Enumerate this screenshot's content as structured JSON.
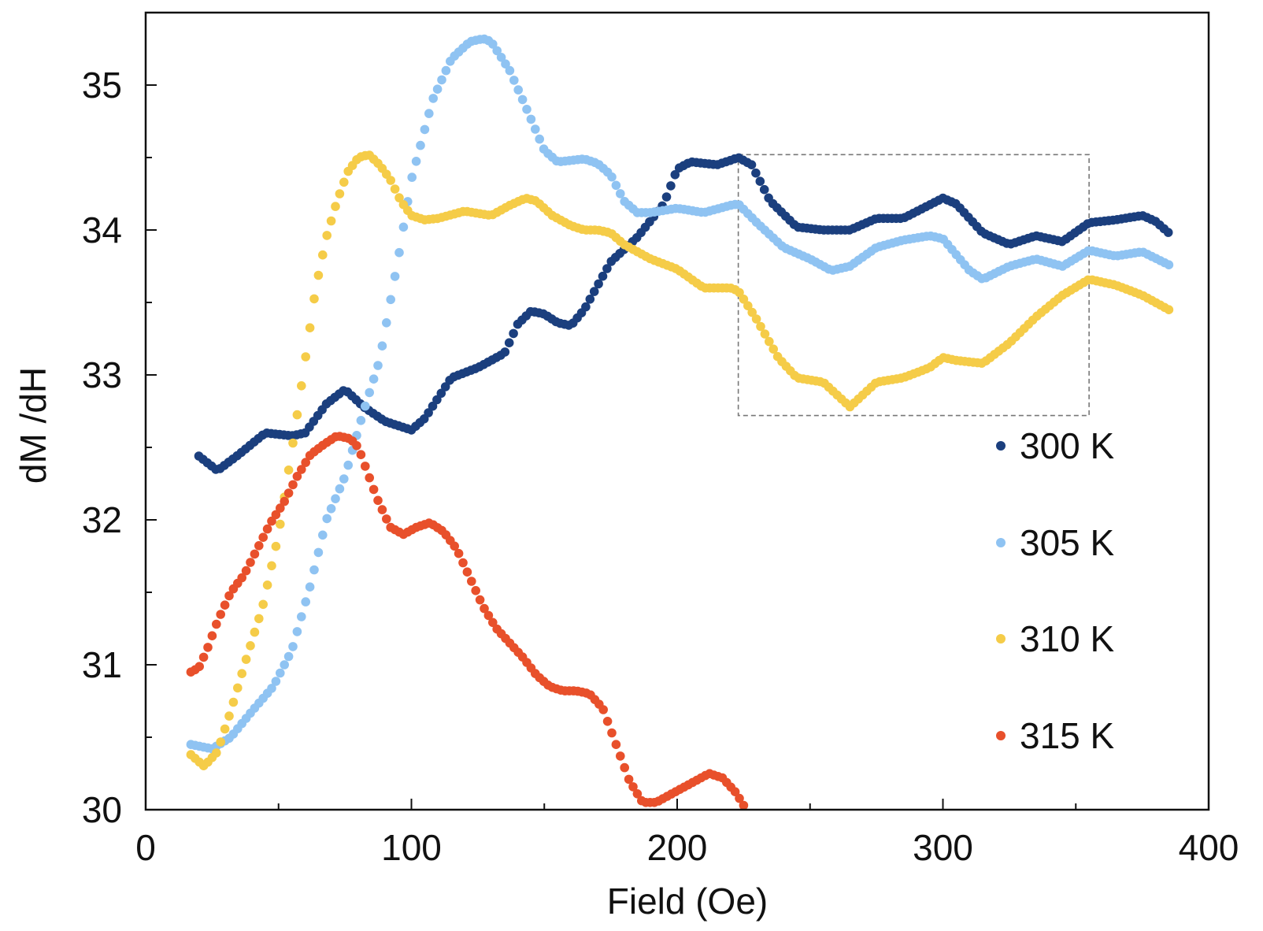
{
  "chart_data": {
    "type": "scatter",
    "xlabel": "Field (Oe)",
    "ylabel": "dM /dH",
    "xlim": [
      0,
      400
    ],
    "ylim": [
      30,
      35.5
    ],
    "xticks": [
      "0",
      "100",
      "200",
      "300",
      "400"
    ],
    "yticks": [
      "30",
      "31",
      "32",
      "33",
      "34",
      "35"
    ],
    "grid": false,
    "legend_position": "lower-right",
    "inset_box": {
      "x_range": [
        223,
        355
      ],
      "y_range": [
        32.72,
        34.52
      ],
      "style": "dashed"
    },
    "series": [
      {
        "name": "300 K",
        "color": "#1b3f7e",
        "x": [
          20,
          27,
          35,
          45,
          55,
          60,
          68,
          75,
          82,
          90,
          100,
          105,
          115,
          125,
          135,
          140,
          145,
          150,
          155,
          160,
          165,
          175,
          185,
          195,
          200,
          205,
          210,
          215,
          220,
          223,
          228,
          235,
          245,
          255,
          265,
          275,
          285,
          300,
          305,
          315,
          325,
          335,
          345,
          355,
          365,
          375,
          380,
          385
        ],
        "y": [
          32.44,
          32.34,
          32.45,
          32.6,
          32.58,
          32.6,
          32.8,
          32.9,
          32.78,
          32.68,
          32.62,
          32.7,
          32.98,
          33.05,
          33.15,
          33.35,
          33.44,
          33.42,
          33.36,
          33.34,
          33.45,
          33.78,
          33.95,
          34.18,
          34.42,
          34.47,
          34.46,
          34.45,
          34.48,
          34.5,
          34.45,
          34.2,
          34.02,
          34.0,
          34.0,
          34.08,
          34.08,
          34.22,
          34.18,
          33.98,
          33.9,
          33.96,
          33.92,
          34.05,
          34.07,
          34.1,
          34.06,
          33.98
        ]
      },
      {
        "name": "305 K",
        "color": "#8fc3f2",
        "x": [
          17,
          25,
          32,
          40,
          48,
          55,
          62,
          68,
          75,
          82,
          88,
          95,
          100,
          108,
          115,
          122,
          127,
          130,
          137,
          143,
          150,
          155,
          160,
          165,
          170,
          175,
          180,
          185,
          190,
          200,
          210,
          220,
          223,
          230,
          240,
          250,
          258,
          265,
          275,
          285,
          295,
          300,
          310,
          315,
          325,
          335,
          345,
          355,
          365,
          375,
          385
        ],
        "y": [
          30.45,
          30.42,
          30.5,
          30.68,
          30.85,
          31.1,
          31.55,
          32.0,
          32.3,
          32.75,
          33.1,
          33.8,
          34.35,
          34.9,
          35.18,
          35.3,
          35.32,
          35.3,
          35.1,
          34.85,
          34.55,
          34.47,
          34.48,
          34.49,
          34.46,
          34.38,
          34.2,
          34.12,
          34.12,
          34.15,
          34.12,
          34.17,
          34.18,
          34.05,
          33.88,
          33.8,
          33.72,
          33.75,
          33.88,
          33.93,
          33.96,
          33.94,
          33.72,
          33.66,
          33.75,
          33.8,
          33.75,
          33.86,
          33.82,
          33.85,
          33.76
        ]
      },
      {
        "name": "310 K",
        "color": "#f5cc48",
        "x": [
          17,
          22,
          27,
          32,
          38,
          44,
          50,
          56,
          60,
          64,
          68,
          72,
          76,
          80,
          84,
          88,
          92,
          96,
          100,
          105,
          110,
          120,
          130,
          137,
          143,
          147,
          153,
          160,
          165,
          170,
          175,
          180,
          190,
          200,
          210,
          220,
          223,
          230,
          238,
          245,
          255,
          265,
          275,
          285,
          295,
          300,
          305,
          315,
          325,
          335,
          345,
          355,
          365,
          375,
          385
        ],
        "y": [
          30.38,
          30.3,
          30.4,
          30.68,
          31.05,
          31.4,
          31.9,
          32.6,
          33.1,
          33.6,
          33.95,
          34.2,
          34.4,
          34.5,
          34.52,
          34.45,
          34.35,
          34.2,
          34.1,
          34.07,
          34.08,
          34.13,
          34.1,
          34.17,
          34.22,
          34.2,
          34.1,
          34.03,
          34.0,
          34.0,
          33.98,
          33.9,
          33.8,
          33.73,
          33.6,
          33.6,
          33.58,
          33.38,
          33.12,
          32.98,
          32.95,
          32.78,
          32.95,
          32.98,
          33.05,
          33.12,
          33.1,
          33.08,
          33.22,
          33.4,
          33.55,
          33.66,
          33.62,
          33.55,
          33.45
        ]
      },
      {
        "name": "315 K",
        "color": "#e8502b",
        "x": [
          17,
          20,
          23,
          27,
          32,
          37,
          42,
          47,
          52,
          57,
          62,
          67,
          72,
          77,
          80,
          83,
          87,
          92,
          97,
          102,
          107,
          112,
          117,
          122,
          127,
          132,
          137,
          142,
          147,
          152,
          157,
          162,
          167,
          172,
          177,
          182,
          187,
          192,
          197,
          202,
          207,
          212,
          217,
          222,
          226
        ],
        "y": [
          30.95,
          30.98,
          31.1,
          31.3,
          31.5,
          31.62,
          31.8,
          31.98,
          32.12,
          32.3,
          32.45,
          32.52,
          32.58,
          32.56,
          32.5,
          32.35,
          32.15,
          31.95,
          31.9,
          31.95,
          31.98,
          31.92,
          31.8,
          31.6,
          31.4,
          31.25,
          31.15,
          31.05,
          30.93,
          30.85,
          30.82,
          30.82,
          30.8,
          30.7,
          30.45,
          30.2,
          30.05,
          30.05,
          30.1,
          30.15,
          30.2,
          30.25,
          30.22,
          30.12,
          30.0
        ]
      }
    ]
  }
}
